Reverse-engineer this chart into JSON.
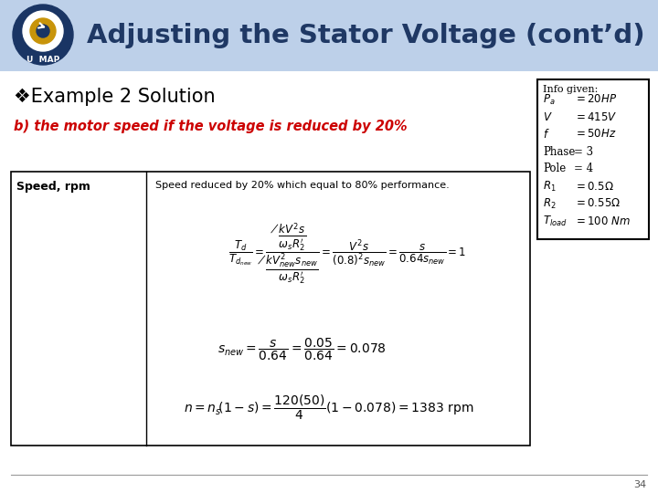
{
  "title": "Adjusting the Stator Voltage (cont’d)",
  "title_color": "#1F3864",
  "header_bg_color": "#BDD0E9",
  "example_text": "❖Example 2 Solution",
  "subtitle_text": "b) the motor speed if the voltage is reduced by 20%",
  "table_left_header": "Speed, rpm",
  "table_note": "Speed reduced by 20% which equal to 80% performance.",
  "info_box_title": "Info given:",
  "page_number": "34",
  "slide_bg_color": "#DDE5EF",
  "content_bg": "#FFFFFF"
}
